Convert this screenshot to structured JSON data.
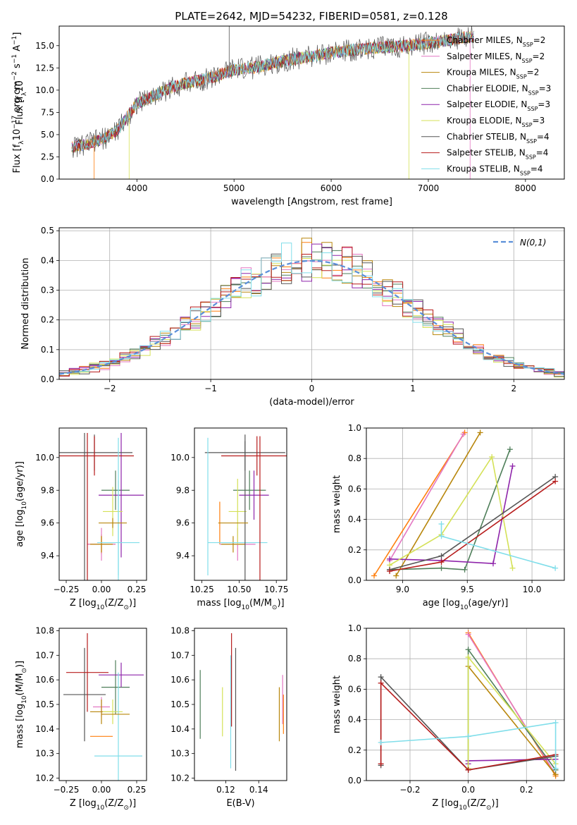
{
  "figure": {
    "title": "PLATE=2642, MJD=54232, FIBERID=0581, z=0.128"
  },
  "models": [
    {
      "key": "chabrier_miles",
      "label": "Chabrier MILES, N",
      "sub": "SSP",
      "tail": "=2",
      "color": "#ff7f0e"
    },
    {
      "key": "salpeter_miles",
      "label": "Salpeter MILES, N",
      "sub": "SSP",
      "tail": "=2",
      "color": "#e377c2"
    },
    {
      "key": "kroupa_miles",
      "label": "Kroupa MILES, N",
      "sub": "SSP",
      "tail": "=2",
      "color": "#b8860b"
    },
    {
      "key": "chabrier_elodie",
      "label": "Chabrier ELODIE, N",
      "sub": "SSP",
      "tail": "=3",
      "color": "#4f7f5a"
    },
    {
      "key": "salpeter_elodie",
      "label": "Salpeter ELODIE, N",
      "sub": "SSP",
      "tail": "=3",
      "color": "#8e24aa"
    },
    {
      "key": "kroupa_elodie",
      "label": "Kroupa ELODIE, N",
      "sub": "SSP",
      "tail": "=3",
      "color": "#d4e157"
    },
    {
      "key": "chabrier_stelib",
      "label": "Chabrier STELIB, N",
      "sub": "SSP",
      "tail": "=4",
      "color": "#555555"
    },
    {
      "key": "salpeter_stelib",
      "label": "Salpeter STELIB, N",
      "sub": "SSP",
      "tail": "=4",
      "color": "#b71c1c"
    },
    {
      "key": "kroupa_stelib",
      "label": "Kroupa STELIB, N",
      "sub": "SSP",
      "tail": "=4",
      "color": "#80deea"
    }
  ],
  "chart_data": [
    {
      "id": "spectrum",
      "type": "line",
      "title": "PLATE=2642, MJD=54232, FIBERID=0581, z=0.128",
      "xlabel": "wavelength [Angstrom, rest frame]",
      "ylabel": "Flux [f",
      "ylabel_sub": "λ",
      "ylabel_tail": "10",
      "ylabel_sup": "−17",
      "ylabel_units": " erg cm",
      "xlim": [
        3200,
        8400
      ],
      "ylim": [
        0,
        17.2
      ],
      "xticks": [
        "4000",
        "5000",
        "6000",
        "7000",
        "8000"
      ],
      "yticks": [
        "0.0",
        "2.5",
        "5.0",
        "7.5",
        "10.0",
        "12.5",
        "15.0"
      ],
      "legend": "right",
      "continuum": [
        [
          3350,
          3.6
        ],
        [
          3500,
          4.0
        ],
        [
          3650,
          4.5
        ],
        [
          3800,
          5.5
        ],
        [
          3900,
          7.0
        ],
        [
          4000,
          8.5
        ],
        [
          4200,
          9.5
        ],
        [
          4400,
          10.5
        ],
        [
          4600,
          11.0
        ],
        [
          4800,
          11.5
        ],
        [
          5000,
          12.3
        ],
        [
          5200,
          12.5
        ],
        [
          5400,
          13.0
        ],
        [
          5600,
          13.5
        ],
        [
          5800,
          13.8
        ],
        [
          6000,
          14.2
        ],
        [
          6200,
          14.5
        ],
        [
          6500,
          14.8
        ],
        [
          6800,
          15.0
        ],
        [
          7000,
          15.3
        ],
        [
          7200,
          15.6
        ],
        [
          7400,
          16.0
        ]
      ],
      "features": [
        {
          "model": "chabrier_stelib",
          "x": 4950,
          "y": 17.2
        },
        {
          "model": "kroupa_elodie",
          "x": 3920,
          "y": 0
        },
        {
          "model": "kroupa_elodie",
          "x": 6800,
          "y": 0
        },
        {
          "model": "salpeter_miles",
          "x": 7430,
          "y": 0
        },
        {
          "model": "chabrier_miles",
          "x": 3560,
          "y": 0
        }
      ]
    },
    {
      "id": "residual_hist",
      "type": "line",
      "xlabel": "(data-model)/error",
      "ylabel": "Normed distribution",
      "xlim": [
        -2.5,
        2.5
      ],
      "ylim": [
        0,
        0.51
      ],
      "xticks": [
        "−2",
        "−1",
        "0",
        "1",
        "2"
      ],
      "yticks": [
        "0.0",
        "0.1",
        "0.2",
        "0.3",
        "0.4",
        "0.5"
      ],
      "grid": true,
      "legend": "top-right",
      "reference_series": {
        "name": "N(0,1)",
        "color": "#5b8fd9",
        "mean": 0,
        "sigma": 1
      },
      "bin_width": 0.1
    },
    {
      "id": "age_vs_Z",
      "type": "scatter",
      "xlabel": "Z [log",
      "xlabel_sub": "10",
      "xlabel_tail": "(Z/Z",
      "xlabel_sub2": "⊙",
      "xlabel_end": ")]",
      "ylabel": "age  [log",
      "ylabel_sub": "10",
      "ylabel_tail": "(age/yr)]",
      "xlim": [
        -0.3,
        0.32
      ],
      "ylim": [
        9.25,
        10.18
      ],
      "xticks": [
        "−0.25",
        "0.00",
        "0.25"
      ],
      "yticks": [
        "9.4",
        "9.6",
        "9.8",
        "10.0"
      ],
      "points": [
        {
          "model": "chabrier_miles",
          "x": 0.0,
          "y": 9.47,
          "xerr": 0.1,
          "yerr": 0.06
        },
        {
          "model": "salpeter_miles",
          "x": 0.0,
          "y": 9.47,
          "xerr": 0.1,
          "yerr": 0.1
        },
        {
          "model": "kroupa_miles",
          "x": 0.0,
          "y": 9.47,
          "xerr": 0.08,
          "yerr": 0.05
        },
        {
          "model": "chabrier_elodie",
          "x": 0.1,
          "y": 9.8,
          "xerr": 0.1,
          "yerr": 0.12
        },
        {
          "model": "salpeter_elodie",
          "x": 0.14,
          "y": 9.77,
          "xerr": 0.16,
          "yerr": 0.38
        },
        {
          "model": "kroupa_elodie",
          "x": 0.08,
          "y": 9.67,
          "xerr": 0.07,
          "yerr": 0.15
        },
        {
          "model": "chabrier_stelib",
          "x": -0.05,
          "y": 10.03,
          "xerr": 0.27,
          "yerr": 0.11
        },
        {
          "model": "salpeter_stelib",
          "x": -0.05,
          "y": 10.01,
          "xerr": 0.28,
          "yerr": 0.12
        },
        {
          "model": "kroupa_stelib",
          "x": 0.12,
          "y": 9.48,
          "xerr": 0.15,
          "yerr": 0.38
        },
        {
          "model": "kroupa_stelib",
          "x": 0.12,
          "y": 9.7,
          "xerr": 0.0,
          "yerr": 0.42
        },
        {
          "model": "chabrier_stelib",
          "x": -0.12,
          "y": 9.6,
          "xerr": 0.0,
          "yerr": 0.55
        },
        {
          "model": "salpeter_stelib",
          "x": -0.1,
          "y": 9.63,
          "xerr": 0.0,
          "yerr": 0.52
        },
        {
          "model": "kroupa_miles",
          "x": 0.08,
          "y": 9.6,
          "xerr": 0.1,
          "yerr": 0.03
        }
      ]
    },
    {
      "id": "age_vs_mass",
      "type": "scatter",
      "xlabel": "mass [log",
      "xlabel_sub": "10",
      "xlabel_tail": "(M/M",
      "xlabel_sub2": "⊙",
      "xlabel_end": ")]",
      "xlim": [
        10.2,
        10.82
      ],
      "ylim": [
        9.25,
        10.18
      ],
      "xticks": [
        "10.25",
        "10.50",
        "10.75"
      ],
      "yticks": [
        "9.4",
        "9.6",
        "9.8",
        "10.0"
      ],
      "points": [
        {
          "model": "chabrier_miles",
          "x": 10.37,
          "y": 9.6,
          "xerr": 0.0,
          "yerr": 0.13
        },
        {
          "model": "salpeter_miles",
          "x": 10.49,
          "y": 9.47,
          "xerr": 0.12,
          "yerr": 0.1
        },
        {
          "model": "kroupa_miles",
          "x": 10.46,
          "y": 9.47,
          "xerr": 0.08,
          "yerr": 0.05
        },
        {
          "model": "chabrier_elodie",
          "x": 10.57,
          "y": 9.8,
          "xerr": 0.11,
          "yerr": 0.12
        },
        {
          "model": "salpeter_elodie",
          "x": 10.6,
          "y": 9.77,
          "xerr": 0.1,
          "yerr": 0.15
        },
        {
          "model": "kroupa_elodie",
          "x": 10.49,
          "y": 9.67,
          "xerr": 0.06,
          "yerr": 0.2
        },
        {
          "model": "chabrier_stelib",
          "x": 10.54,
          "y": 10.03,
          "xerr": 0.27,
          "yerr": 0.11
        },
        {
          "model": "salpeter_stelib",
          "x": 10.62,
          "y": 10.01,
          "xerr": 0.24,
          "yerr": 0.12
        },
        {
          "model": "kroupa_stelib",
          "x": 10.49,
          "y": 9.48,
          "xerr": 0.2,
          "yerr": 0.0
        },
        {
          "model": "kroupa_stelib",
          "x": 10.29,
          "y": 9.7,
          "xerr": 0.0,
          "yerr": 0.42
        },
        {
          "model": "chabrier_stelib",
          "x": 10.54,
          "y": 9.6,
          "xerr": 0.0,
          "yerr": 0.5
        },
        {
          "model": "salpeter_stelib",
          "x": 10.64,
          "y": 9.63,
          "xerr": 0.0,
          "yerr": 0.5
        },
        {
          "model": "kroupa_miles",
          "x": 10.46,
          "y": 9.6,
          "xerr": 0.1,
          "yerr": 0.0
        }
      ]
    },
    {
      "id": "weight_vs_age",
      "type": "line",
      "xlabel": "age  [log",
      "xlabel_sub": "10",
      "xlabel_tail": "(age/yr)]",
      "ylabel": "mass weight",
      "xlim": [
        8.72,
        10.25
      ],
      "ylim": [
        0,
        1.0
      ],
      "xticks": [
        "9.0",
        "9.5",
        "10.0"
      ],
      "yticks": [
        "0.0",
        "0.2",
        "0.4",
        "0.6",
        "0.8",
        "1.0"
      ],
      "grid": true,
      "series": [
        {
          "model": "chabrier_miles",
          "x": [
            8.78,
            9.48
          ],
          "y": [
            0.03,
            0.97
          ]
        },
        {
          "model": "salpeter_miles",
          "x": [
            8.9,
            9.47
          ],
          "y": [
            0.13,
            0.96
          ]
        },
        {
          "model": "kroupa_miles",
          "x": [
            8.95,
            9.6
          ],
          "y": [
            0.03,
            0.97
          ]
        },
        {
          "model": "chabrier_elodie",
          "x": [
            8.9,
            9.3,
            9.48,
            9.83
          ],
          "y": [
            0.07,
            0.08,
            0.07,
            0.86
          ]
        },
        {
          "model": "salpeter_elodie",
          "x": [
            8.9,
            9.3,
            9.7,
            9.85
          ],
          "y": [
            0.14,
            0.13,
            0.11,
            0.75
          ]
        },
        {
          "model": "kroupa_elodie",
          "x": [
            8.9,
            9.3,
            9.69,
            9.85
          ],
          "y": [
            0.1,
            0.3,
            0.81,
            0.08
          ]
        },
        {
          "model": "chabrier_stelib",
          "x": [
            8.9,
            9.3,
            10.18
          ],
          "y": [
            0.07,
            0.16,
            0.68
          ]
        },
        {
          "model": "salpeter_stelib",
          "x": [
            8.9,
            9.3,
            10.18
          ],
          "y": [
            0.06,
            0.12,
            0.65
          ]
        },
        {
          "model": "kroupa_stelib",
          "x": [
            9.3,
            9.3,
            10.18
          ],
          "y": [
            0.37,
            0.29,
            0.08
          ]
        }
      ]
    },
    {
      "id": "mass_vs_Z",
      "type": "scatter",
      "xlabel": "Z [log",
      "xlabel_sub": "10",
      "xlabel_tail": "(Z/Z",
      "xlabel_sub2": "⊙",
      "xlabel_end": ")]",
      "ylabel": "mass [log",
      "ylabel_sub": "10",
      "ylabel_tail": "(M/M",
      "ylabel_sub2": "⊙",
      "ylabel_end": ")]",
      "xlim": [
        -0.3,
        0.32
      ],
      "ylim": [
        10.19,
        10.81
      ],
      "xticks": [
        "−0.25",
        "0.00",
        "0.25"
      ],
      "yticks": [
        "10.2",
        "10.3",
        "10.4",
        "10.5",
        "10.6",
        "10.7",
        "10.8"
      ],
      "points": [
        {
          "model": "chabrier_miles",
          "x": 0.0,
          "y": 10.37,
          "xerr": 0.08,
          "yerr": 0.0
        },
        {
          "model": "salpeter_miles",
          "x": 0.0,
          "y": 10.49,
          "xerr": 0.06,
          "yerr": 0.04
        },
        {
          "model": "kroupa_miles",
          "x": 0.0,
          "y": 10.47,
          "xerr": 0.08,
          "yerr": 0.05
        },
        {
          "model": "chabrier_elodie",
          "x": 0.1,
          "y": 10.57,
          "xerr": 0.1,
          "yerr": 0.11
        },
        {
          "model": "salpeter_elodie",
          "x": 0.14,
          "y": 10.62,
          "xerr": 0.16,
          "yerr": 0.05
        },
        {
          "model": "kroupa_elodie",
          "x": 0.08,
          "y": 10.47,
          "xerr": 0.07,
          "yerr": 0.05
        },
        {
          "model": "chabrier_stelib",
          "x": -0.12,
          "y": 10.54,
          "xerr": 0.15,
          "yerr": 0.19
        },
        {
          "model": "salpeter_stelib",
          "x": -0.1,
          "y": 10.63,
          "xerr": 0.15,
          "yerr": 0.16
        },
        {
          "model": "kroupa_stelib",
          "x": 0.12,
          "y": 10.29,
          "xerr": 0.17,
          "yerr": 0.34
        },
        {
          "model": "kroupa_miles",
          "x": 0.1,
          "y": 10.46,
          "xerr": 0.1,
          "yerr": 0.0
        }
      ]
    },
    {
      "id": "mass_vs_EBV",
      "type": "scatter",
      "xlabel": "E(B-V)",
      "xlim": [
        0.101,
        0.157
      ],
      "ylim": [
        10.19,
        10.81
      ],
      "xticks": [
        "0.12",
        "0.14"
      ],
      "yticks": [
        "10.2",
        "10.3",
        "10.4",
        "10.5",
        "10.6",
        "10.7",
        "10.8"
      ],
      "points": [
        {
          "model": "chabrier_elodie",
          "x": 0.1045,
          "y": 10.5,
          "xerr": 0.0,
          "yerr": 0.14
        },
        {
          "model": "kroupa_elodie",
          "x": 0.118,
          "y": 10.47,
          "xerr": 0.0,
          "yerr": 0.1
        },
        {
          "model": "kroupa_stelib",
          "x": 0.123,
          "y": 10.47,
          "xerr": 0.0,
          "yerr": 0.23
        },
        {
          "model": "salpeter_stelib",
          "x": 0.1235,
          "y": 10.6,
          "xerr": 0.0,
          "yerr": 0.19
        },
        {
          "model": "chabrier_stelib",
          "x": 0.126,
          "y": 10.48,
          "xerr": 0.0,
          "yerr": 0.25
        },
        {
          "model": "kroupa_miles",
          "x": 0.1525,
          "y": 10.46,
          "xerr": 0.0,
          "yerr": 0.11
        },
        {
          "model": "salpeter_miles",
          "x": 0.1545,
          "y": 10.52,
          "xerr": 0.0,
          "yerr": 0.1
        },
        {
          "model": "chabrier_miles",
          "x": 0.155,
          "y": 10.46,
          "xerr": 0.0,
          "yerr": 0.08
        }
      ]
    },
    {
      "id": "weight_vs_Z",
      "type": "line",
      "xlabel": "Z [log",
      "xlabel_sub": "10",
      "xlabel_tail": "(Z/Z",
      "xlabel_sub2": "⊙",
      "xlabel_end": ")]",
      "ylabel": "mass weight",
      "xlim": [
        -0.35,
        0.33
      ],
      "ylim": [
        0,
        1.0
      ],
      "xticks": [
        "−0.2",
        "0.0",
        "0.2"
      ],
      "yticks": [
        "0.0",
        "0.2",
        "0.4",
        "0.6",
        "0.8",
        "1.0"
      ],
      "grid": true,
      "series": [
        {
          "model": "chabrier_miles",
          "x": [
            0.0,
            0.3
          ],
          "y": [
            0.97,
            0.03
          ]
        },
        {
          "model": "salpeter_miles",
          "x": [
            0.0,
            0.3
          ],
          "y": [
            0.96,
            0.04
          ]
        },
        {
          "model": "kroupa_miles",
          "x": [
            0.0,
            0.3
          ],
          "y": [
            0.75,
            0.04
          ]
        },
        {
          "model": "chabrier_elodie",
          "x": [
            0.0,
            0.0,
            0.3
          ],
          "y": [
            0.07,
            0.86,
            0.07
          ]
        },
        {
          "model": "salpeter_elodie",
          "x": [
            0.0,
            0.0,
            0.3
          ],
          "y": [
            0.11,
            0.13,
            0.14
          ]
        },
        {
          "model": "kroupa_elodie",
          "x": [
            0.0,
            0.0,
            0.3
          ],
          "y": [
            0.08,
            0.81,
            0.11
          ]
        },
        {
          "model": "chabrier_stelib",
          "x": [
            -0.3,
            -0.3,
            0.0,
            0.3
          ],
          "y": [
            0.1,
            0.68,
            0.07,
            0.16
          ]
        },
        {
          "model": "salpeter_stelib",
          "x": [
            -0.3,
            -0.3,
            0.0,
            0.3
          ],
          "y": [
            0.11,
            0.64,
            0.07,
            0.17
          ]
        },
        {
          "model": "kroupa_stelib",
          "x": [
            -0.3,
            0.0,
            0.3,
            0.3
          ],
          "y": [
            0.25,
            0.29,
            0.38,
            0.08
          ]
        }
      ]
    }
  ]
}
